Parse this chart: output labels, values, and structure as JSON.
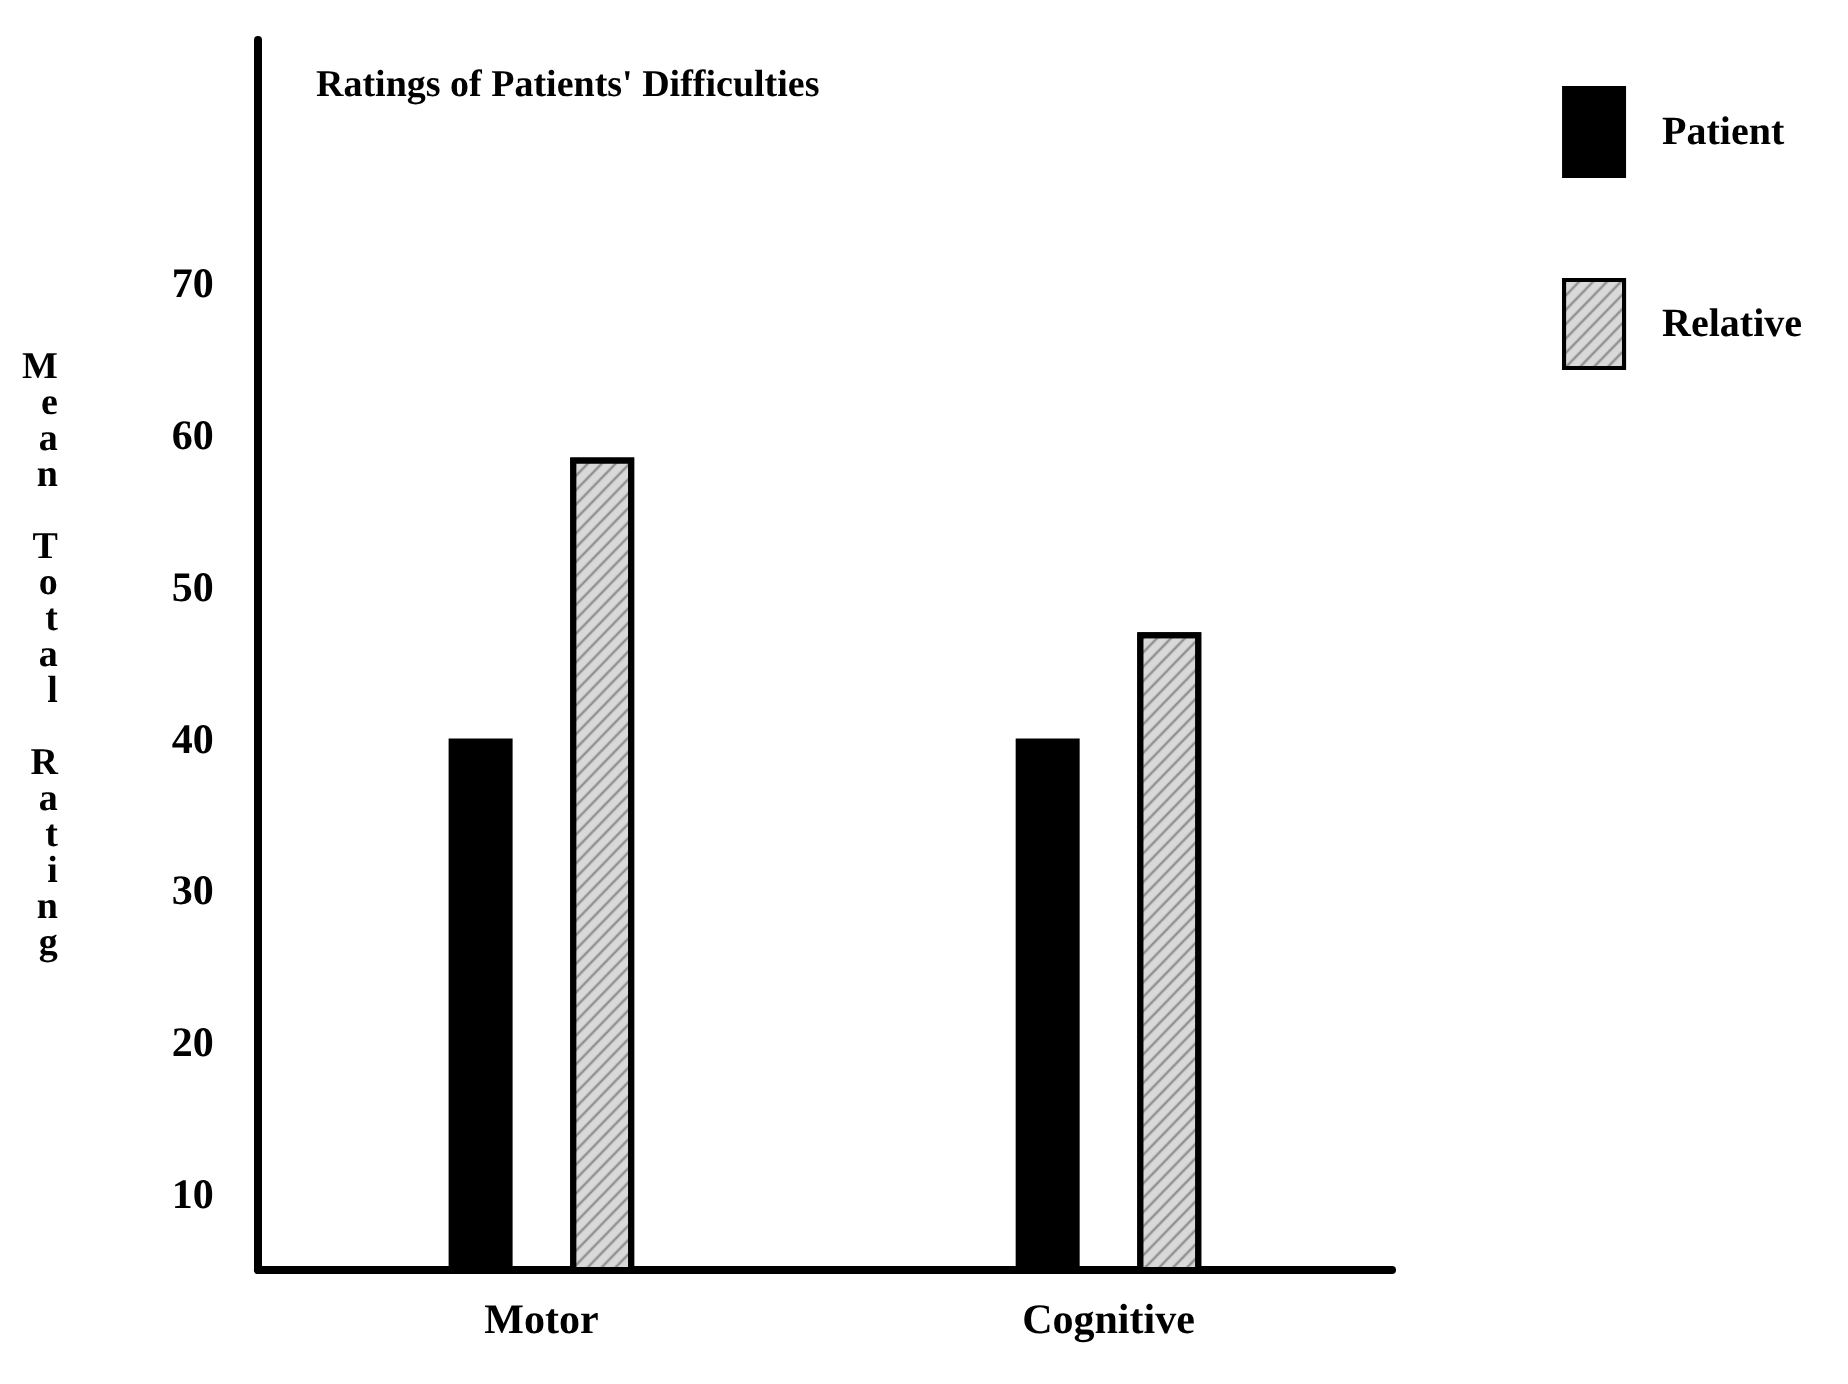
{
  "chart_data": {
    "type": "bar",
    "title": "Ratings of Patients' Difficulties",
    "ylabel": "Mean Total Rating",
    "categories": [
      "Motor",
      "Cognitive"
    ],
    "series": [
      {
        "name": "Patient",
        "color": "#000000",
        "values": [
          40,
          40
        ]
      },
      {
        "name": "Relative",
        "color": "#d9d9d9",
        "values": [
          58.5,
          47
        ]
      }
    ],
    "ylim": [
      5,
      86
    ],
    "yticks": [
      10,
      20,
      30,
      40,
      50,
      60,
      70
    ],
    "grid": false,
    "legend": "top right"
  }
}
